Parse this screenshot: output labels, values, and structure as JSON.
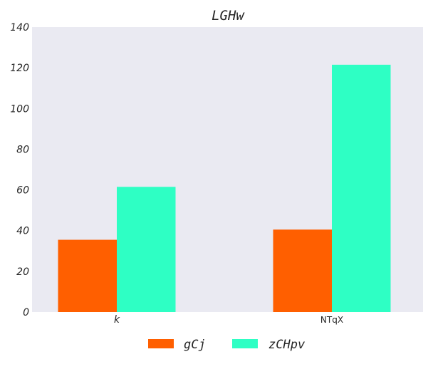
{
  "chart_data": {
    "type": "bar",
    "title": "LGHw",
    "categories": [
      "k",
      "NTqX"
    ],
    "series": [
      {
        "name": "gCj",
        "values": [
          35.5,
          40.5
        ],
        "color": "#ff5f00"
      },
      {
        "name": "zCHpv",
        "values": [
          61.5,
          121.5
        ],
        "color": "#2effc4"
      }
    ],
    "ylim": [
      0,
      140
    ],
    "yticks": [
      0,
      20,
      40,
      60,
      80,
      100,
      120,
      140
    ],
    "grid": false,
    "legend_position": "bottom-center",
    "background_color": "#eaeaf2"
  }
}
